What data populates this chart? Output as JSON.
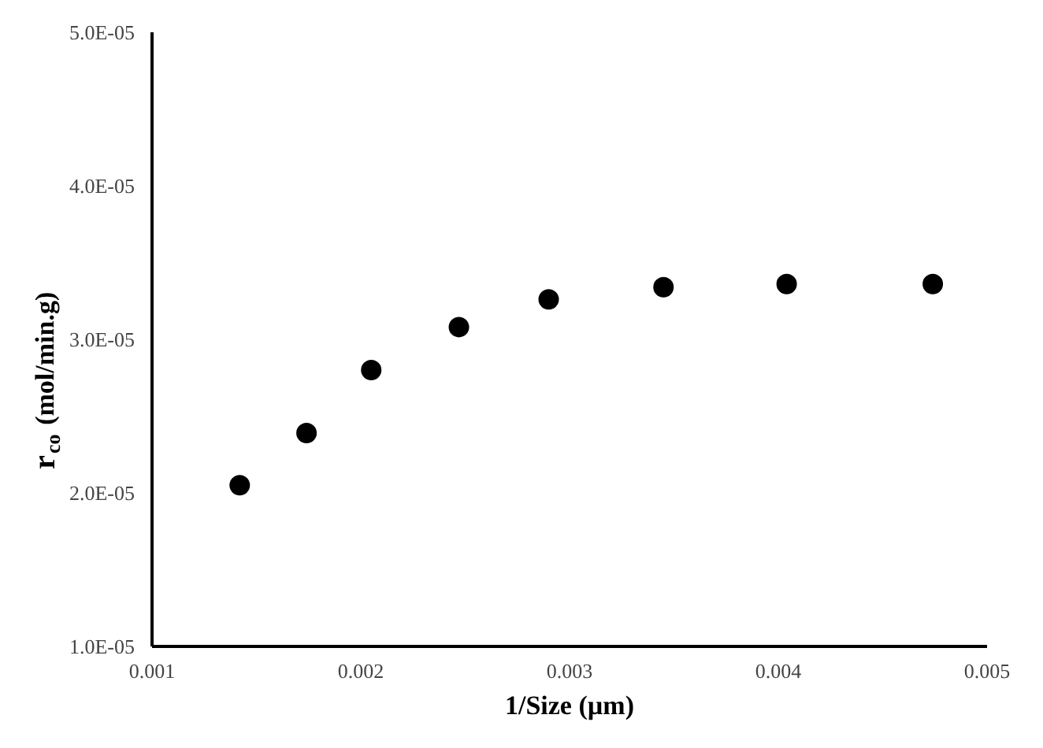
{
  "chart_data": {
    "type": "scatter",
    "xlabel": "1/Size (µm)",
    "ylabel": "r$_{co}$ (mol/min.g)",
    "x": [
      0.00142,
      0.00174,
      0.00205,
      0.00247,
      0.0029,
      0.00345,
      0.00404,
      0.00474
    ],
    "series": [
      {
        "color": "#000000",
        "values": [
          2.05e-05,
          2.39e-05,
          2.8e-05,
          3.08e-05,
          3.26e-05,
          3.34e-05,
          3.36e-05,
          3.36e-05
        ]
      }
    ],
    "xlim": [
      0.001,
      0.005
    ],
    "ylim": [
      1e-05,
      5e-05
    ],
    "xticks": [
      {
        "value": 0.001,
        "label": "0.001"
      },
      {
        "value": 0.002,
        "label": "0.002"
      },
      {
        "value": 0.003,
        "label": "0.003"
      },
      {
        "value": 0.004,
        "label": "0.004"
      },
      {
        "value": 0.005,
        "label": "0.005"
      }
    ],
    "yticks": [
      {
        "value": 1e-05,
        "label": "1.0E-05"
      },
      {
        "value": 2e-05,
        "label": "2.0E-05"
      },
      {
        "value": 3e-05,
        "label": "3.0E-05"
      },
      {
        "value": 4e-05,
        "label": "4.0E-05"
      },
      {
        "value": 5e-05,
        "label": "5.0E-05"
      }
    ],
    "grid": false,
    "marker": "circle"
  }
}
